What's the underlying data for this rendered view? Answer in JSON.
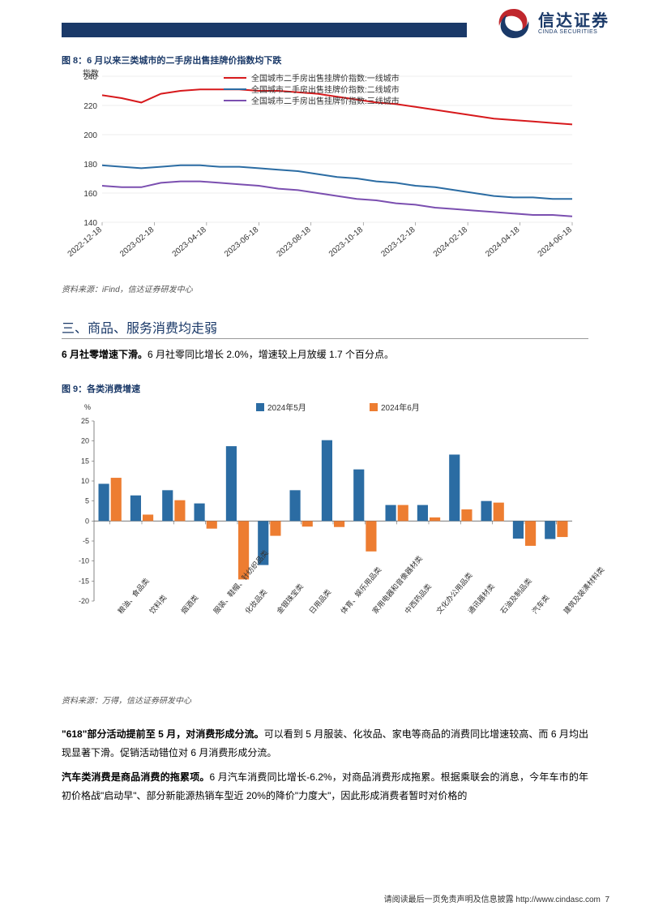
{
  "header": {
    "logo_cn": "信达证券",
    "logo_en": "CINDA SECURITIES"
  },
  "fig8": {
    "title": "图 8：6 月以来三类城市的二手房出售挂牌价指数均下跌",
    "type": "line",
    "y_axis_label": "指数",
    "ylim": [
      140,
      240
    ],
    "ytick_step": 20,
    "x_labels": [
      "2022-12-18",
      "2023-02-18",
      "2023-04-18",
      "2023-06-18",
      "2023-08-18",
      "2023-10-18",
      "2023-12-18",
      "2024-02-18",
      "2024-04-18",
      "2024-06-18"
    ],
    "legend": [
      {
        "label": "全国城市二手房出售挂牌价指数:一线城市",
        "color": "#d7191c"
      },
      {
        "label": "全国城市二手房出售挂牌价指数:二线城市",
        "color": "#2b6ca3"
      },
      {
        "label": "全国城市二手房出售挂牌价指数:三线城市",
        "color": "#7b4fb0"
      }
    ],
    "series": {
      "tier1": {
        "color": "#d7191c",
        "width": 2,
        "values": [
          227,
          225,
          222,
          228,
          230,
          231,
          231,
          231,
          230,
          230,
          229,
          228,
          226,
          224,
          222,
          221,
          219,
          217,
          215,
          213,
          211,
          210,
          209,
          208,
          207
        ]
      },
      "tier2": {
        "color": "#2b6ca3",
        "width": 2,
        "values": [
          179,
          178,
          177,
          178,
          179,
          179,
          178,
          178,
          177,
          176,
          175,
          173,
          171,
          170,
          168,
          167,
          165,
          164,
          162,
          160,
          158,
          157,
          157,
          156,
          156
        ]
      },
      "tier3": {
        "color": "#7b4fb0",
        "width": 2,
        "values": [
          165,
          164,
          164,
          167,
          168,
          168,
          167,
          166,
          165,
          163,
          162,
          160,
          158,
          156,
          155,
          153,
          152,
          150,
          149,
          148,
          147,
          146,
          145,
          145,
          144
        ]
      }
    },
    "background_color": "#ffffff",
    "grid_color": "#d9d9d9",
    "axis_color": "#666666",
    "label_fontsize": 10,
    "source": "资料来源：iFind，信达证券研发中心"
  },
  "section3": {
    "title": "三、商品、服务消费均走弱",
    "para1_bold": "6 月社零增速下滑。",
    "para1_rest": "6 月社零同比增长 2.0%，增速较上月放缓 1.7 个百分点。"
  },
  "fig9": {
    "title": "图 9：各类消费增速",
    "type": "bar",
    "y_unit": "%",
    "ylim": [
      -20,
      25
    ],
    "ytick_step": 5,
    "legend": [
      {
        "label": "2024年5月",
        "color": "#2b6ca3"
      },
      {
        "label": "2024年6月",
        "color": "#ed7d31"
      }
    ],
    "categories": [
      "粮油、食品类",
      "饮料类",
      "烟酒类",
      "服装、鞋帽、针纺织品类",
      "化妆品类",
      "金银珠宝类",
      "日用品类",
      "体育、娱乐用品类",
      "家用电器和音像器材类",
      "中西药品类",
      "文化办公用品类",
      "通讯器材类",
      "石油及制品类",
      "汽车类",
      "建筑及装潢材料类"
    ],
    "may": [
      9.3,
      6.4,
      7.7,
      4.4,
      18.7,
      -11.0,
      7.7,
      20.2,
      12.9,
      4.0,
      4.0,
      16.6,
      5.0,
      -4.4,
      -4.5
    ],
    "june": [
      10.8,
      1.6,
      5.2,
      -1.9,
      -14.6,
      -3.7,
      -1.4,
      -1.5,
      -7.6,
      4.0,
      0.9,
      2.9,
      4.6,
      -6.2,
      -4.0
    ],
    "bar_width": 0.36,
    "background_color": "#ffffff",
    "axis_color": "#666666",
    "label_fontsize": 9,
    "source": "资料来源：万得，信达证券研发中心"
  },
  "para2": {
    "bold": "\"618\"部分活动提前至 5 月，对消费形成分流。",
    "rest": "可以看到 5 月服装、化妆品、家电等商品的消费同比增速较高、而 6 月均出现显著下滑。促销活动错位对 6 月消费形成分流。"
  },
  "para3": {
    "bold": "汽车类消费是商品消费的拖累项。",
    "rest": "6 月汽车消费同比增长-6.2%，对商品消费形成拖累。根据乘联会的消息，今年车市的年初价格战\"启动早\"、部分新能源热销车型近 20%的降价\"力度大\"，因此形成消费者暂时对价格的"
  },
  "footer": {
    "text_prefix": "请阅读最后一页免责声明及信息披露 ",
    "url": "http://www.cindasc.com",
    "page": "7"
  }
}
